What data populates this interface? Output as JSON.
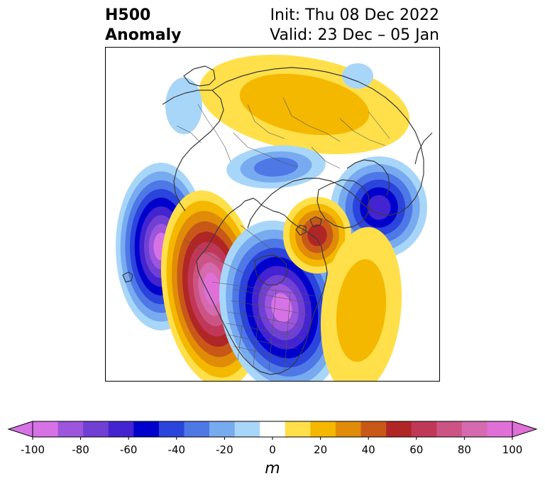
{
  "header": {
    "title_line1": "H500",
    "title_line2": "Anomaly",
    "init": "Init: Thu 08 Dec 2022",
    "valid": "Valid: 23 Dec – 05 Jan"
  },
  "colorbar": {
    "unit": "m",
    "ticks": [
      "-100",
      "-80",
      "-60",
      "-40",
      "-20",
      "0",
      "20",
      "40",
      "60",
      "80",
      "100"
    ],
    "colors": [
      "#d672e6",
      "#9c55dc",
      "#7040d4",
      "#4424d0",
      "#0000cc",
      "#2a44dc",
      "#4e78e6",
      "#78aaf0",
      "#a8d6f8",
      "#ffffff",
      "#ffe04a",
      "#f4b800",
      "#e08c08",
      "#c85818",
      "#b02626",
      "#c03858",
      "#cc5484",
      "#d66aae",
      "#e070d8"
    ],
    "under_color": "#d672e6",
    "over_color": "#e070d8"
  },
  "legend": {
    "neg_colors": [
      "#a8d6f8",
      "#78aaf0",
      "#4e78e6",
      "#2a44dc",
      "#0000cc",
      "#4424d0",
      "#7040d4",
      "#9c55dc",
      "#d672e6"
    ],
    "pos_colors": [
      "#ffe04a",
      "#f4b800",
      "#e08c08",
      "#c85818",
      "#b02626",
      "#c03858",
      "#cc5484",
      "#d66aae",
      "#e070d8"
    ]
  }
}
